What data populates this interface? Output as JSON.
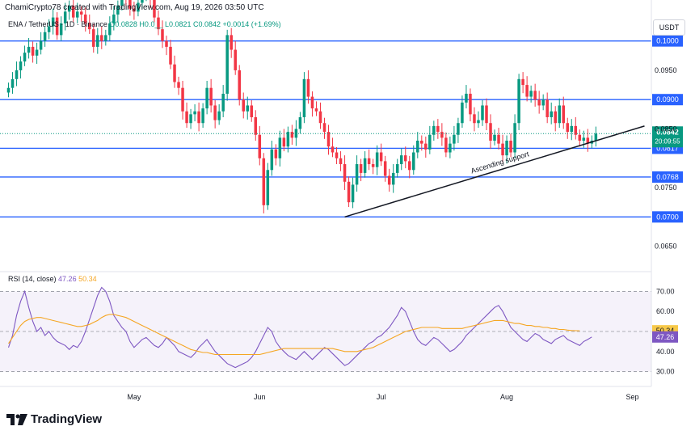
{
  "header": {
    "credit": "ChamiCrypto78 created with TradingView.com, Aug 19, 2026 03:50 UTC"
  },
  "legend": {
    "symbol": "ENA / TetherUS · 1D · Binance",
    "ohlc": "O0.0828  H0.0__  L0.0821  C0.0842  +0.0014 (+1.69%)"
  },
  "currency_button": "USDT",
  "rsi_legend": {
    "label": "RSI (14, close)",
    "rsi_value": "47.26",
    "ma_value": "50.34"
  },
  "footer": {
    "brand": "TradingView"
  },
  "annotations": {
    "trendline_label": "Ascending support"
  },
  "colors": {
    "up": "#089981",
    "down": "#f23645",
    "level": "#2962ff",
    "rsi": "#7e57c2",
    "rsi_ma": "#f5a623",
    "trendline": "#131722"
  },
  "chart_data": [
    {
      "type": "candlestick",
      "title": "ENA / TetherUS · 1D · Binance",
      "x_ticks": [
        "May",
        "Jun",
        "Jul",
        "Aug",
        "Sep"
      ],
      "y_ticks": [
        "0.0650",
        "0.0750",
        "0.0850",
        "0.0950"
      ],
      "ylim": [
        0.0615,
        0.1045
      ],
      "horizontal_levels": [
        0.1,
        0.09,
        0.0817,
        0.0768,
        0.07
      ],
      "level_labels": [
        "0.1000",
        "0.0900",
        "0.0817",
        "0.0768",
        "0.0700"
      ],
      "last_price_label": "0.0842",
      "countdown_label": "20:09:55",
      "trendline": {
        "label": "Ascending support",
        "from": [
          83,
          0.07
        ],
        "to": [
          157,
          0.0855
        ]
      },
      "grid": false,
      "closes": [
        0.092,
        0.0935,
        0.095,
        0.0965,
        0.098,
        0.099,
        0.0975,
        0.0985,
        0.1,
        0.1015,
        0.1025,
        0.104,
        0.101,
        0.103,
        0.105,
        0.106,
        0.104,
        0.105,
        0.1045,
        0.103,
        0.102,
        0.099,
        0.101,
        0.1,
        0.101,
        0.103,
        0.1045,
        0.106,
        0.108,
        0.107,
        0.1055,
        0.105,
        0.1065,
        0.108,
        0.11,
        0.107,
        0.104,
        0.102,
        0.1,
        0.099,
        0.096,
        0.093,
        0.092,
        0.088,
        0.086,
        0.0875,
        0.088,
        0.086,
        0.0885,
        0.092,
        0.089,
        0.0865,
        0.088,
        0.091,
        0.101,
        0.0985,
        0.095,
        0.09,
        0.088,
        0.089,
        0.087,
        0.084,
        0.08,
        0.072,
        0.078,
        0.0815,
        0.08,
        0.0835,
        0.082,
        0.0845,
        0.0835,
        0.085,
        0.087,
        0.0935,
        0.0905,
        0.0885,
        0.088,
        0.086,
        0.0845,
        0.082,
        0.081,
        0.08,
        0.079,
        0.076,
        0.0725,
        0.0755,
        0.079,
        0.0775,
        0.08,
        0.079,
        0.0785,
        0.081,
        0.0795,
        0.077,
        0.0755,
        0.0775,
        0.079,
        0.0805,
        0.0795,
        0.078,
        0.081,
        0.083,
        0.0825,
        0.0815,
        0.084,
        0.0855,
        0.0845,
        0.0835,
        0.081,
        0.0825,
        0.084,
        0.086,
        0.0895,
        0.091,
        0.0875,
        0.086,
        0.0865,
        0.089,
        0.086,
        0.083,
        0.084,
        0.0825,
        0.0805,
        0.083,
        0.081,
        0.086,
        0.0935,
        0.0925,
        0.0905,
        0.0915,
        0.09,
        0.089,
        0.09,
        0.087,
        0.088,
        0.086,
        0.089,
        0.086,
        0.0845,
        0.0855,
        0.084,
        0.083,
        0.0835,
        0.0825,
        0.083,
        0.0842
      ]
    },
    {
      "type": "line",
      "title": "RSI (14, close)",
      "y_ticks": [
        "70.00",
        "60.00",
        "50.00",
        "40.00",
        "30.00"
      ],
      "ylim": [
        27,
        73
      ],
      "value_labels": [
        "50.34",
        "47.26"
      ],
      "series": [
        {
          "name": "RSI",
          "values": [
            42,
            48,
            58,
            65,
            70,
            62,
            55,
            50,
            52,
            48,
            50,
            47,
            45,
            44,
            43,
            41,
            43,
            42,
            45,
            50,
            56,
            62,
            68,
            72,
            70,
            65,
            58,
            55,
            52,
            50,
            45,
            42,
            44,
            46,
            47,
            45,
            43,
            42,
            44,
            47,
            45,
            43,
            40,
            39,
            38,
            37,
            39,
            42,
            44,
            46,
            43,
            40,
            38,
            36,
            34,
            33,
            32,
            33,
            34,
            35,
            37,
            40,
            44,
            48,
            52,
            50,
            45,
            42,
            40,
            38,
            37,
            36,
            38,
            40,
            38,
            36,
            38,
            40,
            42,
            41,
            39,
            37,
            35,
            33,
            34,
            36,
            38,
            40,
            42,
            44,
            45,
            47,
            48,
            50,
            52,
            55,
            58,
            62,
            60,
            55,
            50,
            46,
            44,
            43,
            45,
            47,
            46,
            44,
            42,
            40,
            41,
            43,
            45,
            48,
            50,
            52,
            54,
            56,
            58,
            60,
            62,
            63,
            60,
            56,
            52,
            50,
            48,
            46,
            45,
            47,
            49,
            48,
            46,
            45,
            44,
            46,
            47,
            48,
            46,
            45,
            44,
            43,
            45,
            46,
            47.26
          ]
        },
        {
          "name": "RSI-based MA",
          "values": [
            44,
            47,
            50,
            53,
            55,
            56,
            56.5,
            57,
            57,
            56.5,
            56,
            55.5,
            55,
            54.5,
            54,
            53.5,
            53,
            52.5,
            52.5,
            53,
            53.5,
            54.5,
            55.5,
            57,
            58,
            58.5,
            58.5,
            58,
            57.5,
            57,
            56,
            55,
            54,
            53,
            52,
            51,
            50,
            49,
            48,
            47,
            46,
            45,
            44,
            43,
            42,
            41,
            40.5,
            40,
            39.5,
            39.5,
            39,
            38.5,
            38.5,
            38.5,
            38.5,
            38.5,
            38.5,
            38.5,
            38.5,
            38.5,
            38.5,
            38.5,
            38.5,
            39,
            39.5,
            40,
            40.5,
            41,
            41.5,
            41.5,
            41.5,
            41.5,
            41.5,
            41.5,
            41.5,
            41.5,
            41.5,
            41.5,
            41.5,
            41.5,
            41.5,
            41,
            40.5,
            40,
            40,
            40,
            40,
            40.5,
            41,
            41.5,
            42,
            43,
            44,
            45,
            46,
            47,
            48,
            49,
            50,
            50.5,
            51,
            51.5,
            52,
            52,
            52,
            52,
            52,
            51.5,
            51.5,
            51.5,
            51.5,
            51.5,
            51.5,
            52,
            52.5,
            53,
            53.5,
            54,
            54.5,
            55,
            55.5,
            55.5,
            55.5,
            55,
            54.5,
            54,
            54,
            53.5,
            53,
            53,
            52.5,
            52.5,
            52,
            52,
            51.5,
            51.5,
            51,
            51,
            50.7,
            50.5,
            50.4,
            50.34
          ]
        }
      ]
    }
  ]
}
